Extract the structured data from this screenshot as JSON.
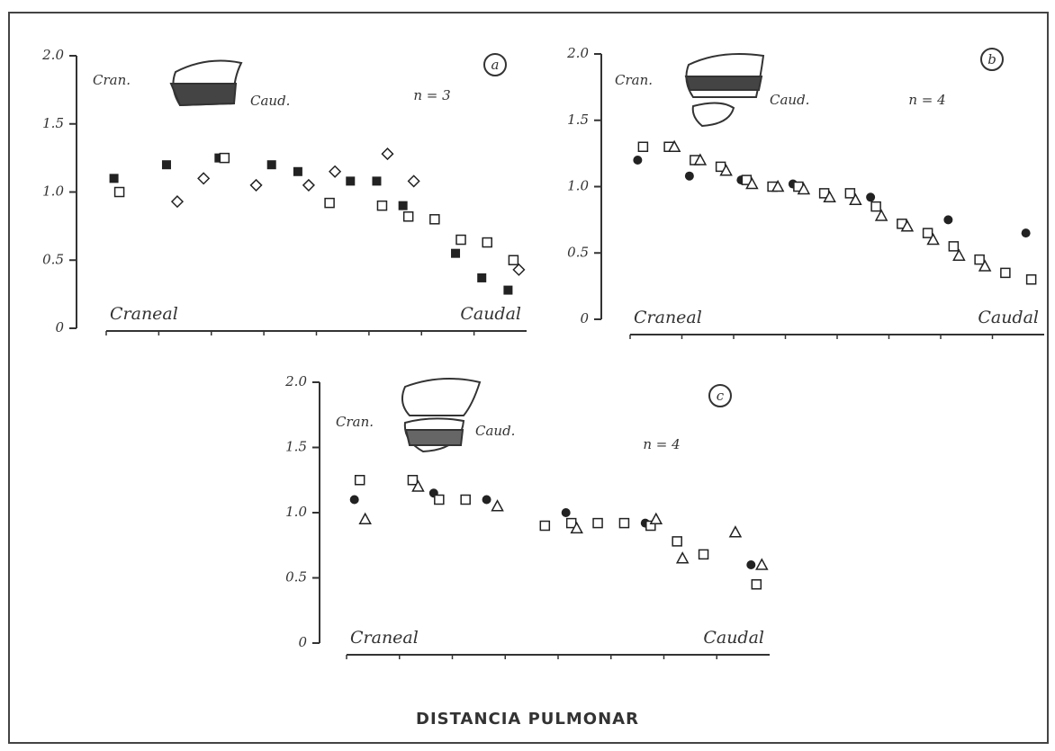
{
  "chart_data": [
    {
      "type": "scatter",
      "panel": "a",
      "n_label": "n = 3",
      "cranial_label": "Cran.",
      "caudal_label": "Caud.",
      "x_start_label": "Craneal",
      "x_end_label": "Caudal",
      "categories": [
        null,
        null,
        null,
        null,
        null,
        null,
        null,
        null,
        null,
        null,
        null,
        null,
        null,
        null,
        null,
        null
      ],
      "ylim": [
        0,
        2
      ],
      "yticks": [
        0,
        {
          "value": 0.5,
          "label": "0.5"
        },
        {
          "value": 1,
          "label": "1.0"
        },
        {
          "value": 1.5,
          "label": "1.5"
        },
        {
          "value": 2,
          "label": "2.0"
        }
      ],
      "series": [
        {
          "marker": "filled-square",
          "color": "#222",
          "values": [
            1.1,
            null,
            1.2,
            null,
            1.25,
            null,
            1.2,
            1.15,
            null,
            1.08,
            1.08,
            0.9,
            null,
            0.55,
            0.37,
            0.28
          ]
        },
        {
          "marker": "square",
          "color": "#222",
          "values": [
            1.0,
            null,
            null,
            null,
            1.25,
            null,
            null,
            null,
            0.92,
            null,
            0.9,
            0.82,
            0.8,
            0.65,
            0.63,
            0.5
          ]
        },
        {
          "marker": "diamond",
          "color": "#222",
          "values": [
            null,
            null,
            0.93,
            1.1,
            null,
            1.05,
            null,
            1.05,
            1.15,
            null,
            1.28,
            1.08,
            null,
            null,
            null,
            0.43
          ]
        }
      ]
    },
    {
      "type": "scatter",
      "panel": "b",
      "n_label": "n = 4",
      "cranial_label": "Cran.",
      "caudal_label": "Caud.",
      "x_start_label": "Craneal",
      "x_end_label": "Caudal",
      "categories": [
        null,
        null,
        null,
        null,
        null,
        null,
        null,
        null,
        null,
        null,
        null,
        null,
        null,
        null,
        null,
        null
      ],
      "ylim": [
        0,
        2
      ],
      "yticks": [
        0,
        {
          "value": 0.5,
          "label": "0.5"
        },
        {
          "value": 1,
          "label": "1.0"
        },
        {
          "value": 1.5,
          "label": "1.5"
        },
        {
          "value": 2,
          "label": "2.0"
        }
      ],
      "series": [
        {
          "marker": "filled-circle",
          "color": "#222",
          "values": [
            1.2,
            null,
            1.08,
            null,
            1.05,
            null,
            1.02,
            null,
            null,
            0.92,
            null,
            null,
            0.75,
            null,
            null,
            0.65
          ]
        },
        {
          "marker": "square",
          "color": "#222",
          "values": [
            1.3,
            1.3,
            1.2,
            1.15,
            1.05,
            1.0,
            1.0,
            0.95,
            0.95,
            0.85,
            0.72,
            0.65,
            0.55,
            0.45,
            0.35,
            0.3
          ]
        },
        {
          "marker": "triangle",
          "color": "#222",
          "values": [
            null,
            1.3,
            1.2,
            1.12,
            1.02,
            1.0,
            0.98,
            0.92,
            0.9,
            0.78,
            0.7,
            0.6,
            0.48,
            0.4,
            null,
            null
          ]
        }
      ]
    },
    {
      "type": "scatter",
      "panel": "c",
      "n_label": "n = 4",
      "cranial_label": "Cran.",
      "caudal_label": "Caud.",
      "x_start_label": "Craneal",
      "x_end_label": "Caudal",
      "categories": [
        null,
        null,
        null,
        null,
        null,
        null,
        null,
        null,
        null,
        null,
        null,
        null,
        null,
        null,
        null,
        null
      ],
      "ylim": [
        0,
        2
      ],
      "yticks": [
        0,
        {
          "value": 0.5,
          "label": "0.5"
        },
        {
          "value": 1,
          "label": "1.0"
        },
        {
          "value": 1.5,
          "label": "1.5"
        },
        {
          "value": 2,
          "label": "2.0"
        }
      ],
      "series": [
        {
          "marker": "filled-circle",
          "color": "#222",
          "values": [
            1.1,
            null,
            null,
            1.15,
            null,
            1.1,
            null,
            null,
            1.0,
            null,
            null,
            0.92,
            null,
            null,
            null,
            0.6
          ]
        },
        {
          "marker": "square",
          "color": "#222",
          "values": [
            1.25,
            null,
            1.25,
            1.1,
            1.1,
            null,
            null,
            0.9,
            0.92,
            0.92,
            0.92,
            0.9,
            0.78,
            0.68,
            null,
            0.45
          ]
        },
        {
          "marker": "triangle",
          "color": "#222",
          "values": [
            0.95,
            null,
            1.2,
            null,
            null,
            1.05,
            null,
            null,
            0.88,
            null,
            null,
            0.95,
            0.65,
            null,
            0.85,
            0.6
          ]
        }
      ]
    }
  ],
  "caption": "DISTANCIA PULMONAR"
}
